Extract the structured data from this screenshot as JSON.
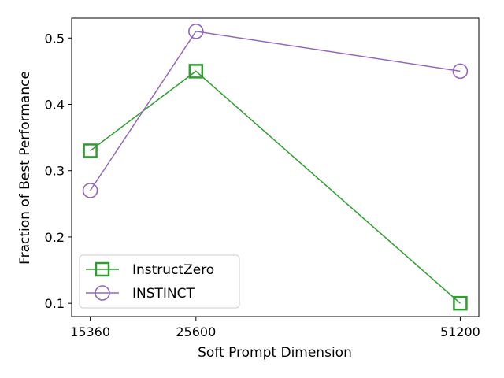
{
  "chart_data": {
    "type": "line",
    "xlabel": "Soft Prompt Dimension",
    "ylabel": "Fraction of Best Performance",
    "x": [
      15360,
      25600,
      51200
    ],
    "xlim": [
      13560,
      53000
    ],
    "ylim": [
      0.08,
      0.53
    ],
    "xticks": [
      15360,
      25600,
      51200
    ],
    "yticks": [
      0.1,
      0.2,
      0.3,
      0.4,
      0.5
    ],
    "ytick_labels": [
      "0.1",
      "0.2",
      "0.3",
      "0.4",
      "0.5"
    ],
    "grid": false,
    "legend_position": "lower-left",
    "series": [
      {
        "name": "InstructZero",
        "values": [
          0.33,
          0.45,
          0.1
        ],
        "color": "#2ca02c",
        "marker": "square"
      },
      {
        "name": "INSTINCT",
        "values": [
          0.27,
          0.51,
          0.45
        ],
        "color": "#9467bd",
        "marker": "circle"
      }
    ]
  }
}
